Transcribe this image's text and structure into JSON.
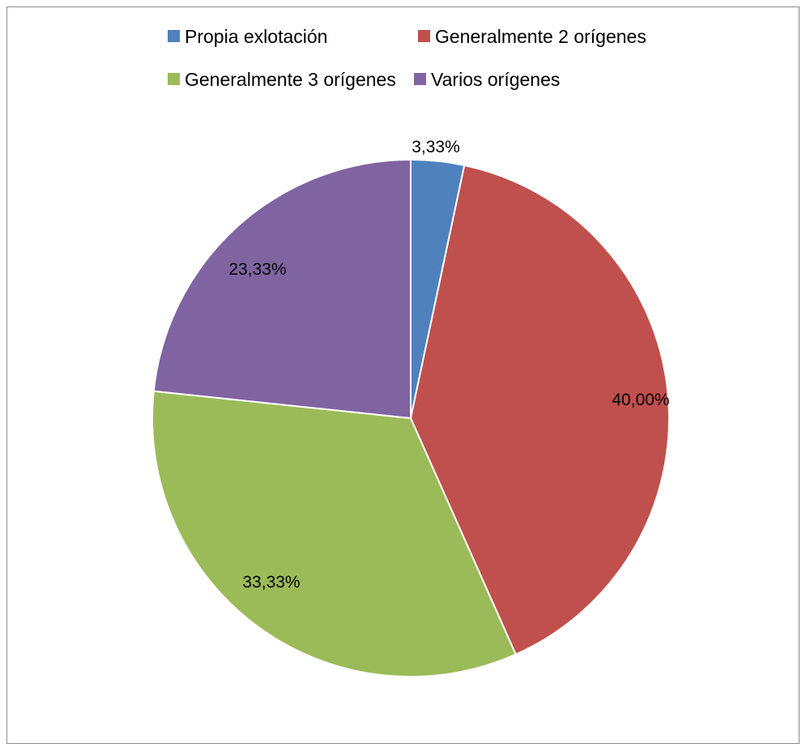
{
  "chart_data": {
    "type": "pie",
    "title": "",
    "legend_position": "top",
    "start_angle": "12 o'clock, clockwise",
    "series": [
      {
        "categories": [
          "Propia exlotación",
          "Generalmente 2 orígenes",
          "Generalmente 3 orígenes",
          "Varios orígenes"
        ],
        "values": [
          3.33,
          40.0,
          33.33,
          23.33
        ],
        "labels": [
          "3,33%",
          "40,00%",
          "33,33%",
          "23,33%"
        ],
        "colors": [
          "#4F81BD",
          "#C0504D",
          "#9BBB59",
          "#8064A2"
        ]
      }
    ]
  }
}
